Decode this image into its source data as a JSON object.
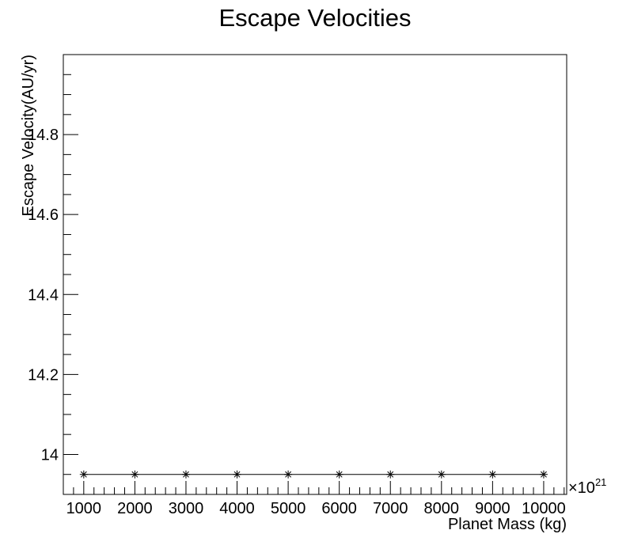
{
  "chart_data": {
    "type": "line",
    "title": "Escape Velocities",
    "xlabel": "Planet Mass (kg)",
    "ylabel": "Escape Velocity(AU/yr)",
    "x_multiplier_base": "×10",
    "x_multiplier_exp": "21",
    "x": [
      1000,
      2000,
      3000,
      4000,
      5000,
      6000,
      7000,
      8000,
      9000,
      10000
    ],
    "series": [
      {
        "values": [
          13.95,
          13.95,
          13.95,
          13.95,
          13.95,
          13.95,
          13.95,
          13.95,
          13.95,
          13.95
        ]
      }
    ],
    "xlim": [
      600,
      10450
    ],
    "ylim": [
      13.9,
      15.0
    ],
    "x_ticks": [
      1000,
      2000,
      3000,
      4000,
      5000,
      6000,
      7000,
      8000,
      9000,
      10000
    ],
    "x_tick_labels": [
      "1000",
      "2000",
      "3000",
      "4000",
      "5000",
      "6000",
      "7000",
      "8000",
      "9000",
      "10000"
    ],
    "y_ticks": [
      14,
      14.2,
      14.4,
      14.6,
      14.8
    ],
    "y_tick_labels": [
      "14",
      "14.2",
      "14.4",
      "14.6",
      "14.8"
    ],
    "marker": "asterisk",
    "line_color": "#000000",
    "grid": false,
    "legend": "none"
  }
}
